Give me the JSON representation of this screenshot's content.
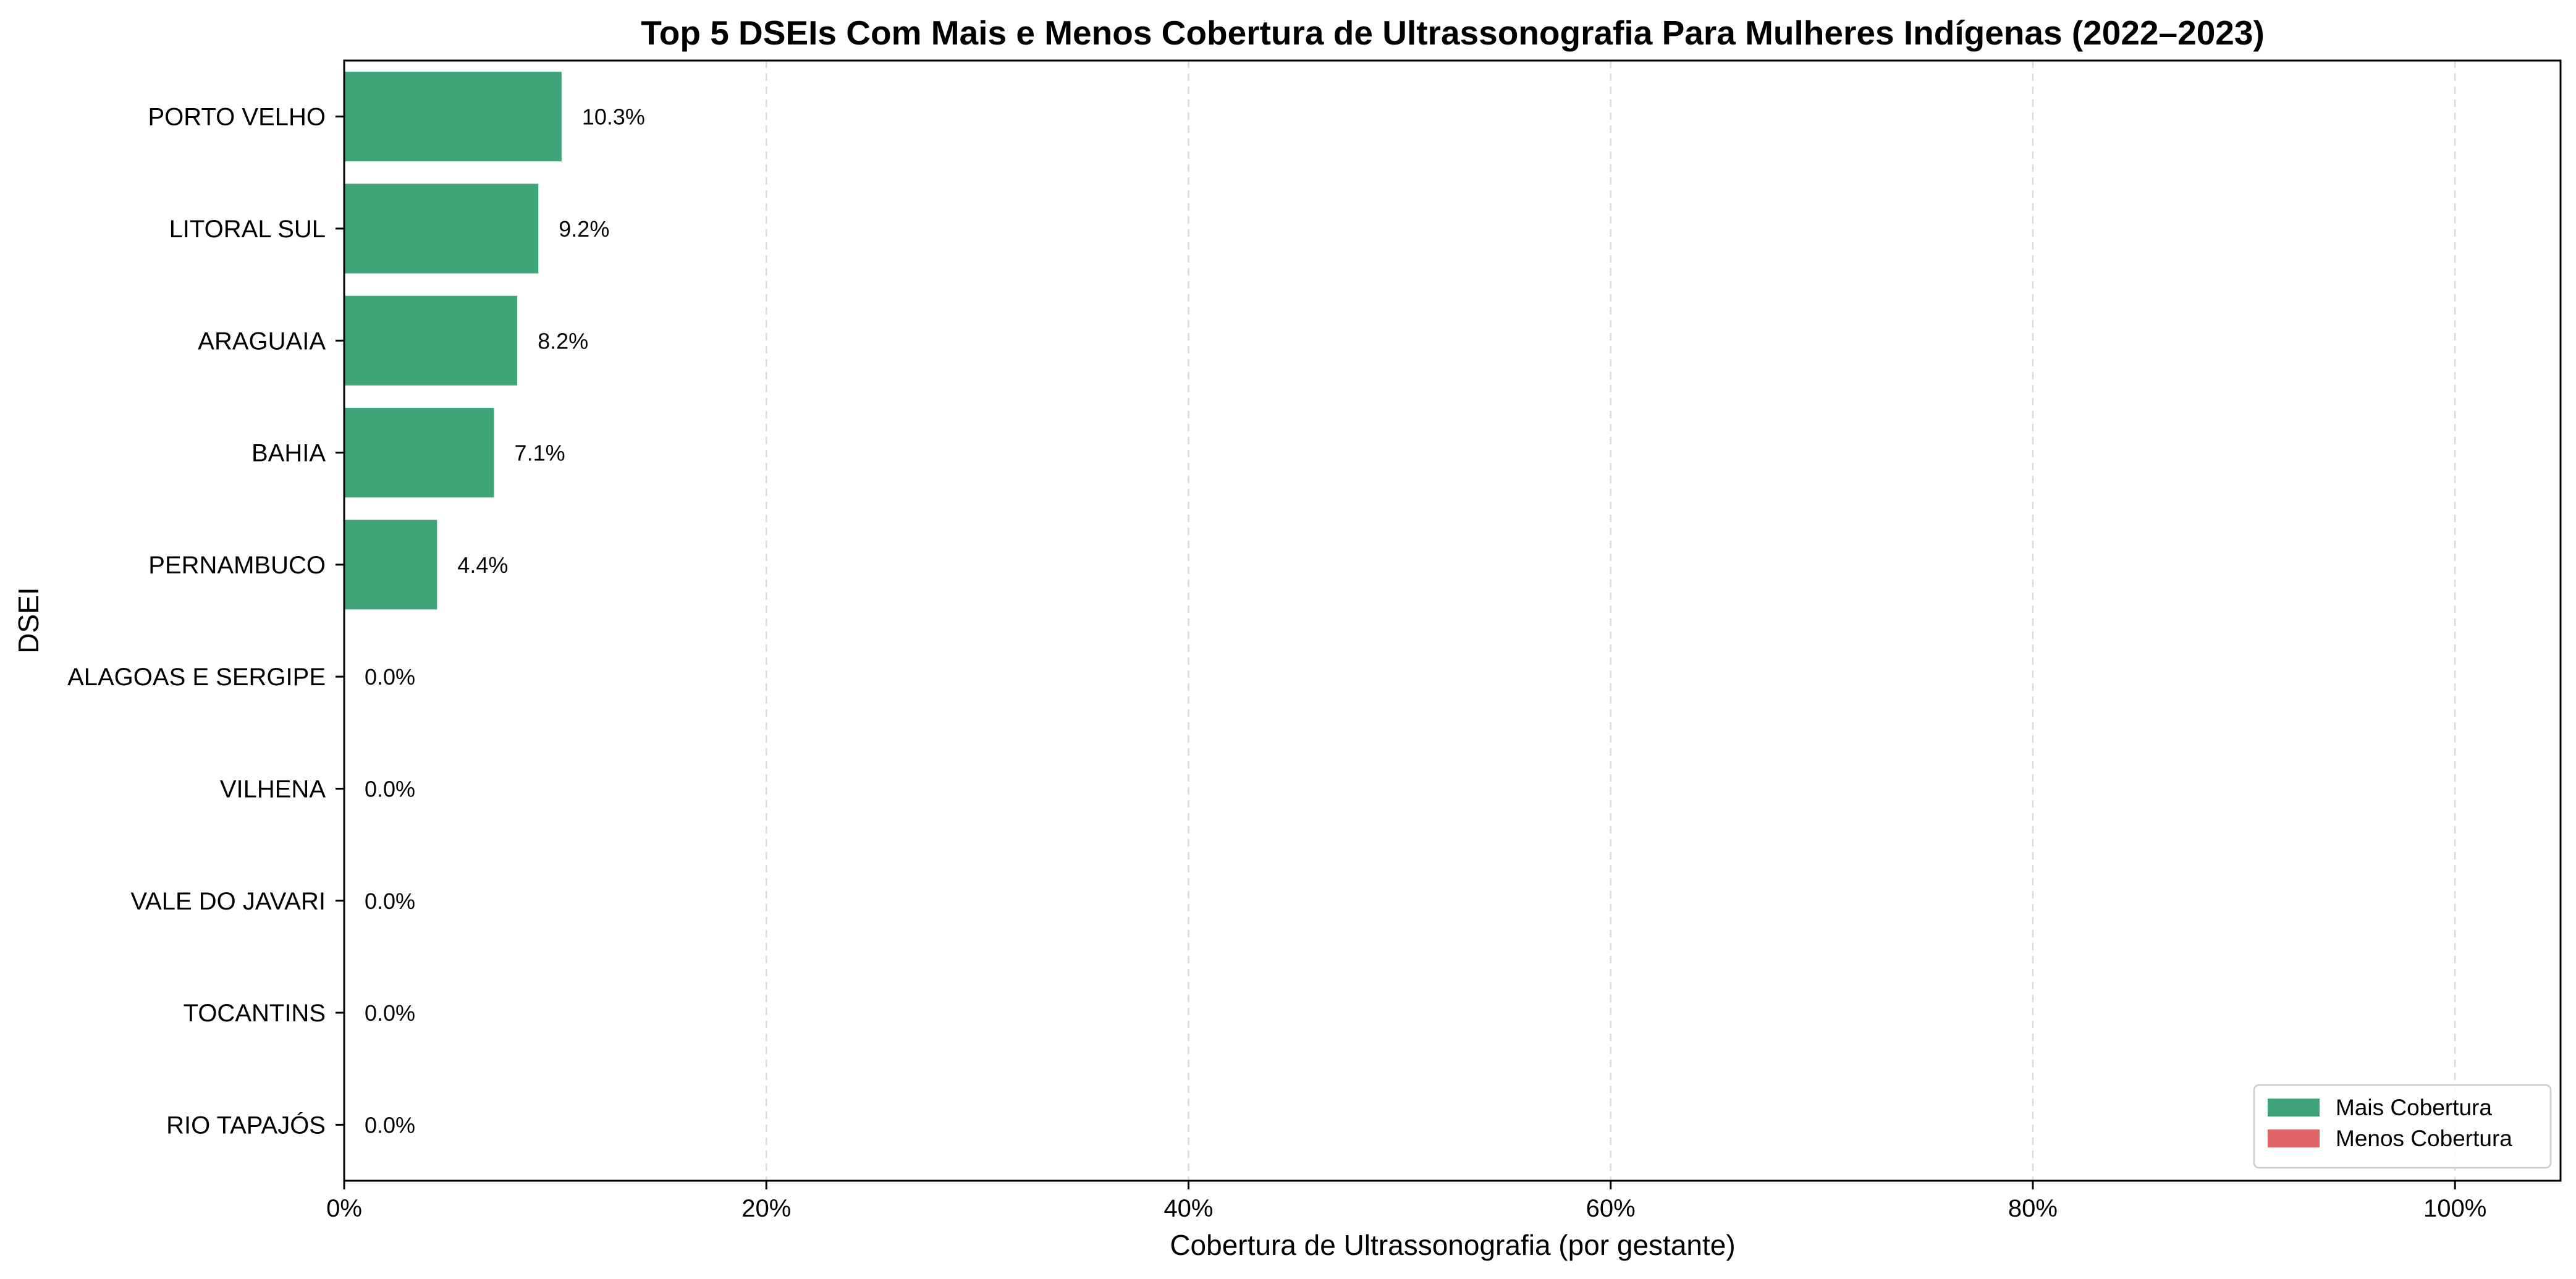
{
  "chart_data": {
    "type": "bar",
    "orientation": "horizontal",
    "title": "Top 5 DSEIs Com Mais e Menos Cobertura de Ultrassonografia Para Mulheres Indígenas (2022–2023)",
    "xlabel": "Cobertura de Ultrassonografia (por gestante)",
    "ylabel": "DSEI",
    "categories": [
      "PORTO VELHO",
      "LITORAL SUL",
      "ARAGUAIA",
      "BAHIA",
      "PERNAMBUCO",
      "ALAGOAS E SERGIPE",
      "VILHENA",
      "VALE DO JAVARI",
      "TOCANTINS",
      "RIO TAPAJÓS"
    ],
    "values": [
      10.3,
      9.2,
      8.2,
      7.1,
      4.4,
      0.0,
      0.0,
      0.0,
      0.0,
      0.0
    ],
    "value_labels": [
      "10.3%",
      "9.2%",
      "8.2%",
      "7.1%",
      "4.4%",
      "0.0%",
      "0.0%",
      "0.0%",
      "0.0%",
      "0.0%"
    ],
    "groups": [
      "Mais Cobertura",
      "Mais Cobertura",
      "Mais Cobertura",
      "Mais Cobertura",
      "Mais Cobertura",
      "Menos Cobertura",
      "Menos Cobertura",
      "Menos Cobertura",
      "Menos Cobertura",
      "Menos Cobertura"
    ],
    "xlim": [
      0,
      105
    ],
    "xticks": [
      0,
      20,
      40,
      60,
      80,
      100
    ],
    "xtick_labels": [
      "0%",
      "20%",
      "40%",
      "60%",
      "80%",
      "100%"
    ],
    "grid": "x-dashed",
    "legend": {
      "placement": "lower-right",
      "entries": [
        {
          "label": "Mais Cobertura",
          "color": "#3fa47a"
        },
        {
          "label": "Menos Cobertura",
          "color": "#e06468"
        }
      ]
    },
    "colors": {
      "mais": "#3fa47a",
      "menos": "#e06468"
    }
  }
}
